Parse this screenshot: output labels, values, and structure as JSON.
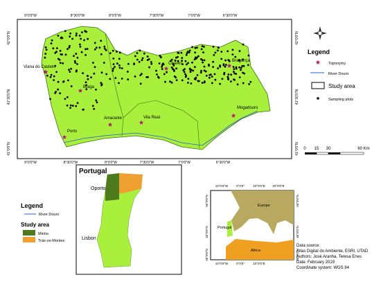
{
  "main_map": {
    "top_longitudes": [
      "9°0'0\"W",
      "8°30'0\"W",
      "8°0'0\"W",
      "7°30'0\"W",
      "7°0'0\"W",
      "6°30'0\"W"
    ],
    "bottom_longitudes": [
      "9°0'0\"W",
      "8°30'0\"W",
      "8°0'0\"W",
      "7°30'0\"W",
      "7°0'0\"W",
      "6°30'0\"W"
    ],
    "left_latitudes": [
      "42°0'0\"N",
      "41°30'0\"N",
      "41°0'0\"N"
    ],
    "right_latitudes": [
      "42°0'0\"N",
      "41°30'0\"N",
      "41°0'0\"N"
    ],
    "towns": [
      "Viana do Castelo",
      "Braga",
      "Porto",
      "Amarante",
      "Vila Real",
      "Chaves",
      "Bragança",
      "Mogadouro"
    ]
  },
  "legend": {
    "title": "Legend",
    "items": [
      "Toponymy",
      "River Douro",
      "Study area",
      "Sampling plots"
    ]
  },
  "scale": {
    "labels": [
      "0",
      "15",
      "30",
      "60 Km"
    ]
  },
  "portugal_inset": {
    "title": "Portugal",
    "labels": [
      "Oporto",
      "Lisbon"
    ]
  },
  "inset_legend": {
    "title": "Legend",
    "river": "River Douro",
    "study_area": "Study area",
    "items": [
      "Minho",
      "Trás-os-Montes"
    ]
  },
  "europe_inset": {
    "top_longitudes": [
      "10°0'0\"W",
      "0°0'0\"",
      "10°0'0\"E",
      "20°0'0\"E"
    ],
    "bottom_longitudes": [
      "10°0'0\"W",
      "0°0'0\"",
      "10°0'0\"E"
    ],
    "left_latitudes": [
      "50°0'0\"N",
      "40°0'0\"N",
      "30°0'0\"N"
    ],
    "right_latitudes": [
      "50°0'0\"N",
      "40°0'0\"N",
      "30°0'0\"N"
    ],
    "labels": [
      "Europe",
      "Portugal",
      "Africa"
    ]
  },
  "data_source": [
    "Data source:",
    "Atlas Digital do Ambiente, ESRI, UTAD",
    "Authors: José Aranha, Teresa Enes",
    "Date: February 2019",
    "Coordinate system: WGS 84"
  ]
}
